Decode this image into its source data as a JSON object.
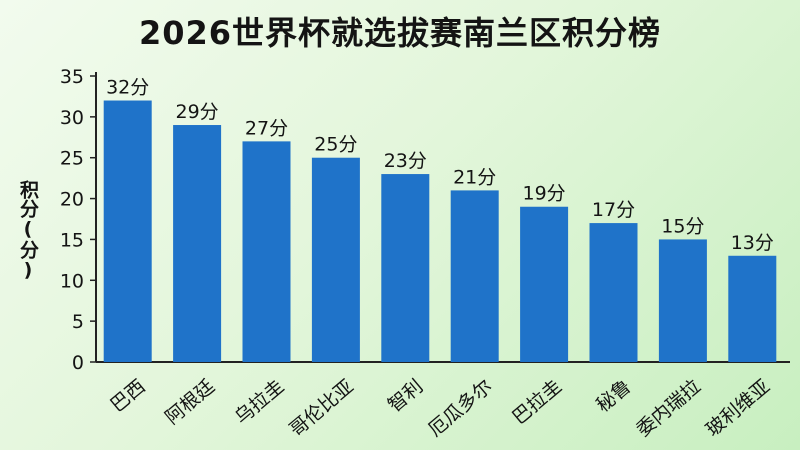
{
  "chart_data": {
    "type": "bar",
    "title": "2026世界杯就选拔赛南兰区积分榜",
    "ylabel": "积分(分)",
    "xlabel": "",
    "ylim": [
      0,
      35
    ],
    "yticks": [
      0,
      5,
      10,
      15,
      20,
      25,
      30,
      35
    ],
    "categories": [
      "巴西",
      "阿根廷",
      "乌拉圭",
      "哥伦比亚",
      "智利",
      "厄瓜多尔",
      "巴拉圭",
      "秘鲁",
      "委内瑞拉",
      "玻利维亚"
    ],
    "values": [
      32,
      29,
      27,
      25,
      23,
      21,
      19,
      17,
      15,
      13
    ],
    "value_labels": [
      "32分",
      "29分",
      "27分",
      "25分",
      "23分",
      "21分",
      "19分",
      "17分",
      "15分",
      "13分"
    ],
    "bar_color": "#1f73c9",
    "grid": false,
    "legend": "none"
  }
}
